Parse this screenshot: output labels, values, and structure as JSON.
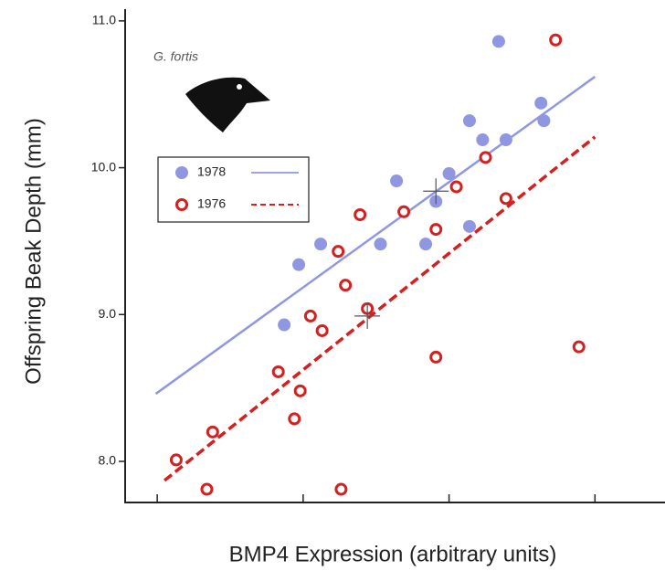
{
  "chart_data": {
    "type": "scatter",
    "x_label": "BMP4 Expression (arbitrary units)",
    "y_label": "Offspring Beak Depth (mm)",
    "annotation": "G. fortis",
    "xlim": [
      -0.22,
      3.48
    ],
    "xticks": [
      0,
      1,
      2,
      3
    ],
    "ylim": [
      7.72,
      11.08
    ],
    "yticks": [
      {
        "value": 8,
        "label": "8.0"
      },
      {
        "value": 9,
        "label": "9.0"
      },
      {
        "value": 10,
        "label": "10.0"
      },
      {
        "value": 11,
        "label": "11.0"
      }
    ],
    "series": [
      {
        "name": "1978",
        "color": "#8f97e3",
        "marker": "filled",
        "line_style": "solid",
        "x": [
          0.87,
          0.97,
          1.12,
          1.53,
          1.64,
          1.84,
          1.91,
          2.0,
          2.14,
          2.14,
          2.23,
          2.34,
          2.39,
          2.63,
          2.65
        ],
        "y": [
          8.93,
          9.34,
          9.48,
          9.48,
          9.91,
          9.48,
          9.77,
          9.96,
          9.6,
          10.32,
          10.19,
          10.86,
          10.19,
          10.44,
          10.32
        ],
        "line_x": [
          -0.01,
          3.0
        ],
        "line_y": [
          8.46,
          10.62
        ],
        "mean_x": 1.91,
        "mean_y": 9.84
      },
      {
        "name": "1976",
        "color": "#d42020",
        "marker": "open",
        "line_style": "dashed",
        "x": [
          0.13,
          0.38,
          0.34,
          0.83,
          0.98,
          0.94,
          1.05,
          1.13,
          1.24,
          1.29,
          1.26,
          1.39,
          1.44,
          1.69,
          1.91,
          1.91,
          2.05,
          2.25,
          2.39,
          2.73,
          2.89
        ],
        "y": [
          8.01,
          8.2,
          7.81,
          8.61,
          8.48,
          8.29,
          8.99,
          8.89,
          9.43,
          9.2,
          7.81,
          9.68,
          9.04,
          9.7,
          9.58,
          8.71,
          9.87,
          10.07,
          9.79,
          10.87,
          8.78
        ],
        "line_x": [
          0.05,
          3.0
        ],
        "line_y": [
          7.87,
          10.21
        ],
        "mean_x": 1.44,
        "mean_y": 8.99
      }
    ]
  }
}
